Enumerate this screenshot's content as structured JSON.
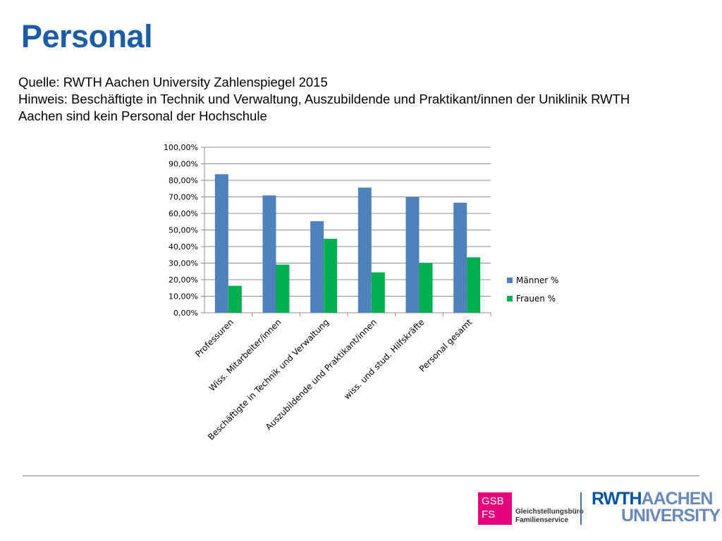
{
  "title": "Personal",
  "notes": {
    "line1": "Quelle: RWTH Aachen University Zahlenspiegel 2015",
    "line2": "Hinweis: Beschäftigte in Technik und Verwaltung, Auszubildende und Praktikant/innen der Uniklinik RWTH",
    "line3": "Aachen sind kein Personal der Hochschule"
  },
  "colors": {
    "maenner": "#4f81bd",
    "frauen": "#00b050",
    "title": "#1c5ea5",
    "gsb": "#e5007d"
  },
  "chart_data": {
    "type": "bar",
    "categories": [
      "Professuren",
      "Wiss. Mitarbeiter/innen",
      "Beschäftigte in Technik und Verwaltung",
      "Auszubildende und Praktikant/innen",
      "wiss. und stud. Hilfskräfte",
      "Personal gesamt"
    ],
    "series": [
      {
        "name": "Männer %",
        "color": "#4f81bd",
        "values": [
          83.7,
          70.9,
          55.3,
          75.6,
          69.9,
          66.5
        ]
      },
      {
        "name": "Frauen %",
        "color": "#00b050",
        "values": [
          16.3,
          29.1,
          44.7,
          24.4,
          30.1,
          33.5
        ]
      }
    ],
    "yticks": [
      "0,00%",
      "10,00%",
      "20,00%",
      "30,00%",
      "40,00%",
      "50,00%",
      "60,00%",
      "70,00%",
      "80,00%",
      "90,00%",
      "100,00%"
    ],
    "ylim": [
      0,
      100
    ],
    "grid": true,
    "legend": "right"
  },
  "footer": {
    "gsb_line1": "GSB",
    "gsb_line2": "FS",
    "gsb_name1": "Gleichstellungsbüro",
    "gsb_name2": "Familienservice",
    "rwth_part1": "RWTH",
    "rwth_part2": "AACHEN",
    "rwth_part3": "UNIVERSITY"
  }
}
